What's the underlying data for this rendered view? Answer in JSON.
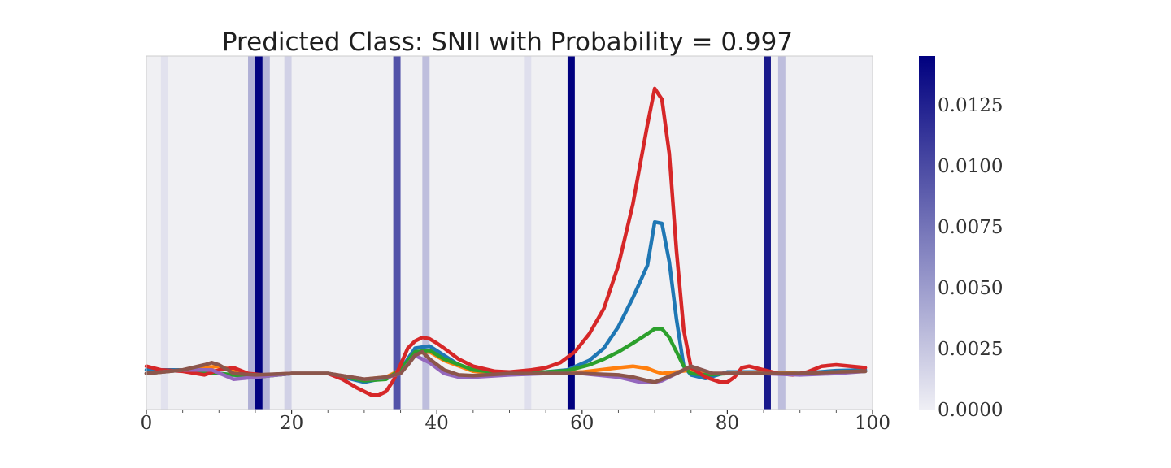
{
  "chart_data": {
    "type": "line",
    "title": "Predicted Class: SNII with Probability = 0.997",
    "xlabel": "",
    "ylabel": "",
    "xlim": [
      0,
      100
    ],
    "x_ticks": [
      0,
      20,
      40,
      60,
      80,
      100
    ],
    "x_minor_ticks": [
      5,
      10,
      15,
      25,
      30,
      35,
      45,
      50,
      55,
      65,
      70,
      75,
      85,
      90,
      95
    ],
    "ylim": [
      -0.5,
      4.4
    ],
    "y_ticks_shown": false,
    "grid": false,
    "background_color": "#f0f0f3",
    "attribution": {
      "description": "vertical shaded bands, 1 time-step wide, colored by attribution value",
      "colormap_low": "#efeff5",
      "colormap_high": "#00007f",
      "vmin": 0.0,
      "vmax": 0.0145,
      "bands": [
        {
          "x": 2,
          "value": 0.0008
        },
        {
          "x": 14,
          "value": 0.0038
        },
        {
          "x": 15,
          "value": 0.0145
        },
        {
          "x": 16,
          "value": 0.0035
        },
        {
          "x": 19,
          "value": 0.0018
        },
        {
          "x": 34,
          "value": 0.0095
        },
        {
          "x": 38,
          "value": 0.003
        },
        {
          "x": 52,
          "value": 0.001
        },
        {
          "x": 58,
          "value": 0.0145
        },
        {
          "x": 85,
          "value": 0.013
        },
        {
          "x": 87,
          "value": 0.003
        }
      ]
    },
    "colorbar": {
      "ticks": [
        0.0,
        0.0025,
        0.005,
        0.0075,
        0.01,
        0.0125
      ],
      "tick_labels": [
        "0.0000",
        "0.0025",
        "0.0050",
        "0.0075",
        "0.0100",
        "0.0125"
      ]
    },
    "series": [
      {
        "color": "#1f77b4",
        "x": [
          0,
          5,
          10,
          15,
          20,
          25,
          30,
          33,
          35,
          37,
          39,
          41,
          43,
          45,
          50,
          55,
          58,
          61,
          63,
          65,
          67,
          69,
          70,
          71,
          72,
          73,
          74,
          75,
          77,
          80,
          85,
          90,
          95,
          99
        ],
        "y": [
          0.05,
          0.05,
          0.0,
          -0.05,
          0.0,
          0.0,
          -0.12,
          -0.06,
          0.05,
          0.35,
          0.38,
          0.25,
          0.12,
          0.05,
          0.0,
          0.02,
          0.05,
          0.18,
          0.35,
          0.65,
          1.05,
          1.5,
          2.1,
          2.08,
          1.55,
          0.75,
          0.1,
          -0.02,
          -0.07,
          0.02,
          0.02,
          0.0,
          0.04,
          0.05
        ]
      },
      {
        "color": "#ff7f0e",
        "x": [
          0,
          5,
          10,
          15,
          20,
          25,
          30,
          33,
          35,
          37,
          39,
          41,
          45,
          50,
          55,
          60,
          65,
          67,
          69,
          70,
          71,
          73,
          75,
          78,
          80,
          85,
          90,
          95,
          99
        ],
        "y": [
          0.0,
          0.05,
          0.1,
          -0.05,
          0.0,
          0.0,
          -0.08,
          -0.05,
          0.05,
          0.28,
          0.3,
          0.18,
          0.03,
          0.0,
          0.0,
          0.02,
          0.08,
          0.1,
          0.07,
          0.03,
          0.0,
          0.02,
          0.05,
          0.0,
          0.0,
          0.02,
          0.0,
          0.02,
          0.03
        ]
      },
      {
        "color": "#2ca02c",
        "x": [
          0,
          5,
          10,
          15,
          20,
          25,
          30,
          33,
          35,
          37,
          39,
          41,
          45,
          50,
          55,
          58,
          61,
          63,
          65,
          67,
          69,
          70,
          71,
          72,
          73,
          74,
          75,
          77,
          80,
          85,
          90,
          95,
          99
        ],
        "y": [
          0.0,
          0.05,
          0.0,
          -0.05,
          0.0,
          0.0,
          -0.1,
          -0.08,
          0.05,
          0.3,
          0.32,
          0.2,
          0.05,
          0.0,
          0.02,
          0.04,
          0.12,
          0.2,
          0.3,
          0.42,
          0.55,
          0.62,
          0.62,
          0.5,
          0.3,
          0.1,
          0.0,
          -0.02,
          0.0,
          0.0,
          0.0,
          0.02,
          0.03
        ]
      },
      {
        "color": "#d62728",
        "x": [
          0,
          2,
          5,
          8,
          10,
          12,
          14,
          16,
          20,
          25,
          27,
          29,
          31,
          32,
          33,
          34,
          35,
          36,
          37,
          38,
          39,
          40,
          41,
          43,
          45,
          48,
          50,
          53,
          55,
          57,
          59,
          61,
          63,
          65,
          67,
          68,
          69,
          70,
          71,
          72,
          73,
          74,
          75,
          77,
          79,
          80,
          81,
          82,
          83,
          85,
          87,
          89,
          90,
          91,
          93,
          95,
          99
        ],
        "y": [
          0.1,
          0.05,
          0.03,
          -0.02,
          0.05,
          0.08,
          0.0,
          -0.02,
          0.0,
          0.0,
          -0.08,
          -0.2,
          -0.3,
          -0.3,
          -0.25,
          -0.1,
          0.12,
          0.35,
          0.45,
          0.5,
          0.48,
          0.42,
          0.35,
          0.2,
          0.1,
          0.03,
          0.02,
          0.05,
          0.08,
          0.15,
          0.3,
          0.55,
          0.9,
          1.5,
          2.35,
          2.9,
          3.45,
          3.95,
          3.8,
          3.05,
          1.7,
          0.6,
          0.08,
          -0.05,
          -0.12,
          -0.12,
          -0.05,
          0.08,
          0.1,
          0.05,
          0.0,
          -0.02,
          0.0,
          0.02,
          0.1,
          0.12,
          0.08
        ]
      },
      {
        "color": "#9467bd",
        "x": [
          0,
          5,
          9,
          12,
          15,
          20,
          25,
          30,
          33,
          35,
          37,
          39,
          41,
          43,
          45,
          50,
          55,
          60,
          65,
          68,
          70,
          71,
          73,
          75,
          78,
          80,
          85,
          90,
          95,
          99
        ],
        "y": [
          0.0,
          0.05,
          0.05,
          -0.08,
          -0.05,
          0.0,
          0.0,
          -0.08,
          -0.06,
          0.0,
          0.25,
          0.15,
          0.0,
          -0.05,
          -0.05,
          -0.02,
          0.0,
          0.0,
          -0.05,
          -0.12,
          -0.12,
          -0.1,
          0.0,
          0.1,
          0.0,
          0.0,
          0.0,
          -0.02,
          0.0,
          0.03
        ]
      },
      {
        "color": "#8c564b",
        "x": [
          0,
          5,
          8,
          9,
          10,
          12,
          15,
          20,
          25,
          30,
          33,
          35,
          36,
          37,
          38,
          39,
          41,
          43,
          45,
          50,
          55,
          60,
          65,
          67,
          69,
          70,
          71,
          73,
          75,
          78,
          80,
          85,
          90,
          95,
          99
        ],
        "y": [
          0.0,
          0.05,
          0.12,
          0.15,
          0.12,
          0.0,
          -0.02,
          0.0,
          0.0,
          -0.08,
          -0.05,
          0.0,
          0.12,
          0.25,
          0.3,
          0.2,
          0.05,
          -0.02,
          -0.03,
          0.0,
          0.0,
          0.0,
          -0.02,
          -0.05,
          -0.1,
          -0.12,
          -0.08,
          0.0,
          0.1,
          0.0,
          0.0,
          0.0,
          0.0,
          0.02,
          0.03
        ]
      }
    ]
  }
}
